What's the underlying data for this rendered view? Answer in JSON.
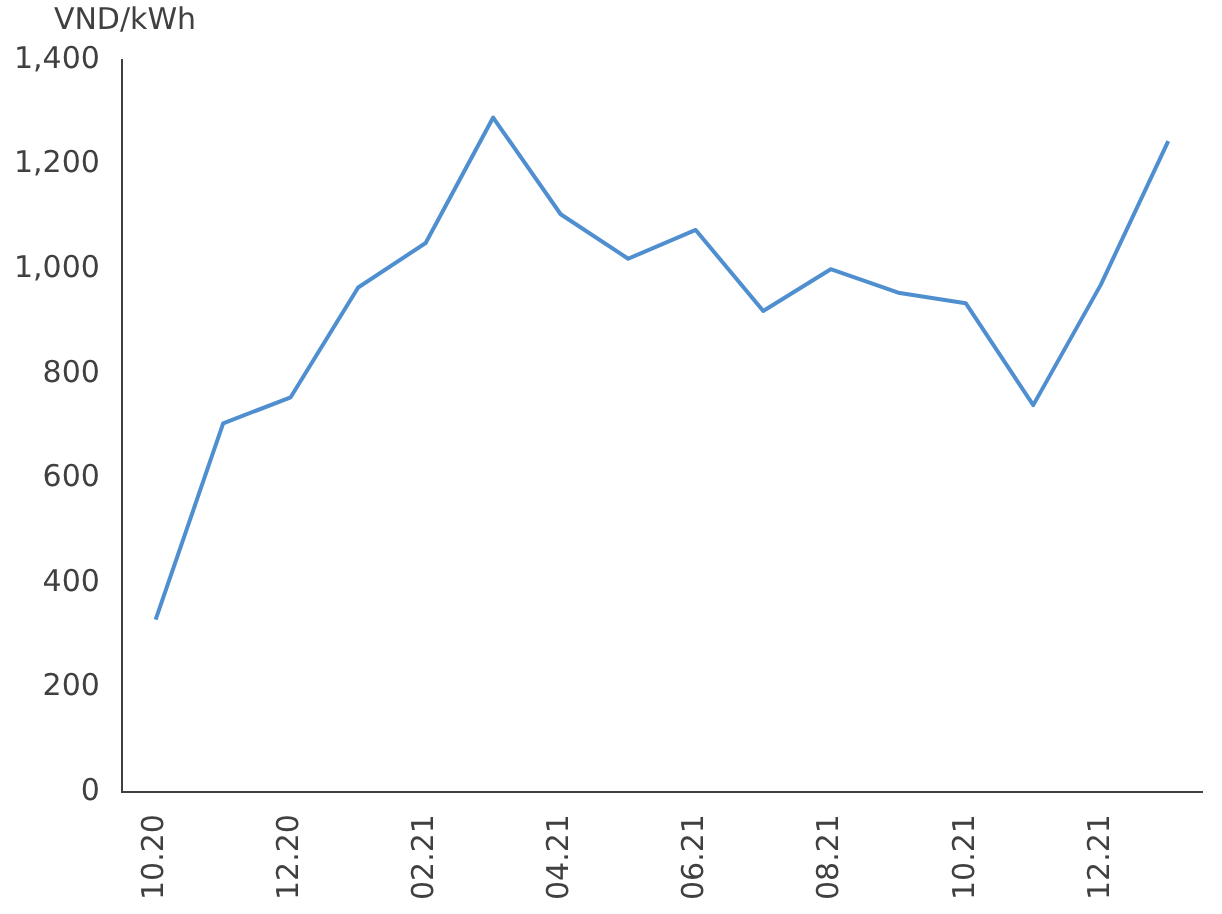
{
  "chart_data": {
    "type": "line",
    "ylabel": "VND/kWh",
    "categories": [
      "10.20",
      null,
      "12.20",
      null,
      "02.21",
      null,
      "04.21",
      null,
      "06.21",
      null,
      "08.21",
      null,
      "10.21",
      null,
      "12.21",
      null
    ],
    "series": [
      {
        "color": "#4f8fd0",
        "values": [
          330,
          705,
          755,
          965,
          1050,
          1290,
          1105,
          1020,
          1075,
          920,
          1000,
          955,
          935,
          740,
          970,
          1245
        ]
      }
    ],
    "ylim": [
      0,
      1400
    ],
    "yticks": [
      0,
      200,
      400,
      600,
      800,
      {
        "value": 1000,
        "label": "1,000"
      },
      {
        "value": 1200,
        "label": "1,200"
      },
      {
        "value": 1400,
        "label": "1,400"
      }
    ],
    "grid": false,
    "legend": false,
    "marker": "none",
    "line_style": "solid"
  }
}
